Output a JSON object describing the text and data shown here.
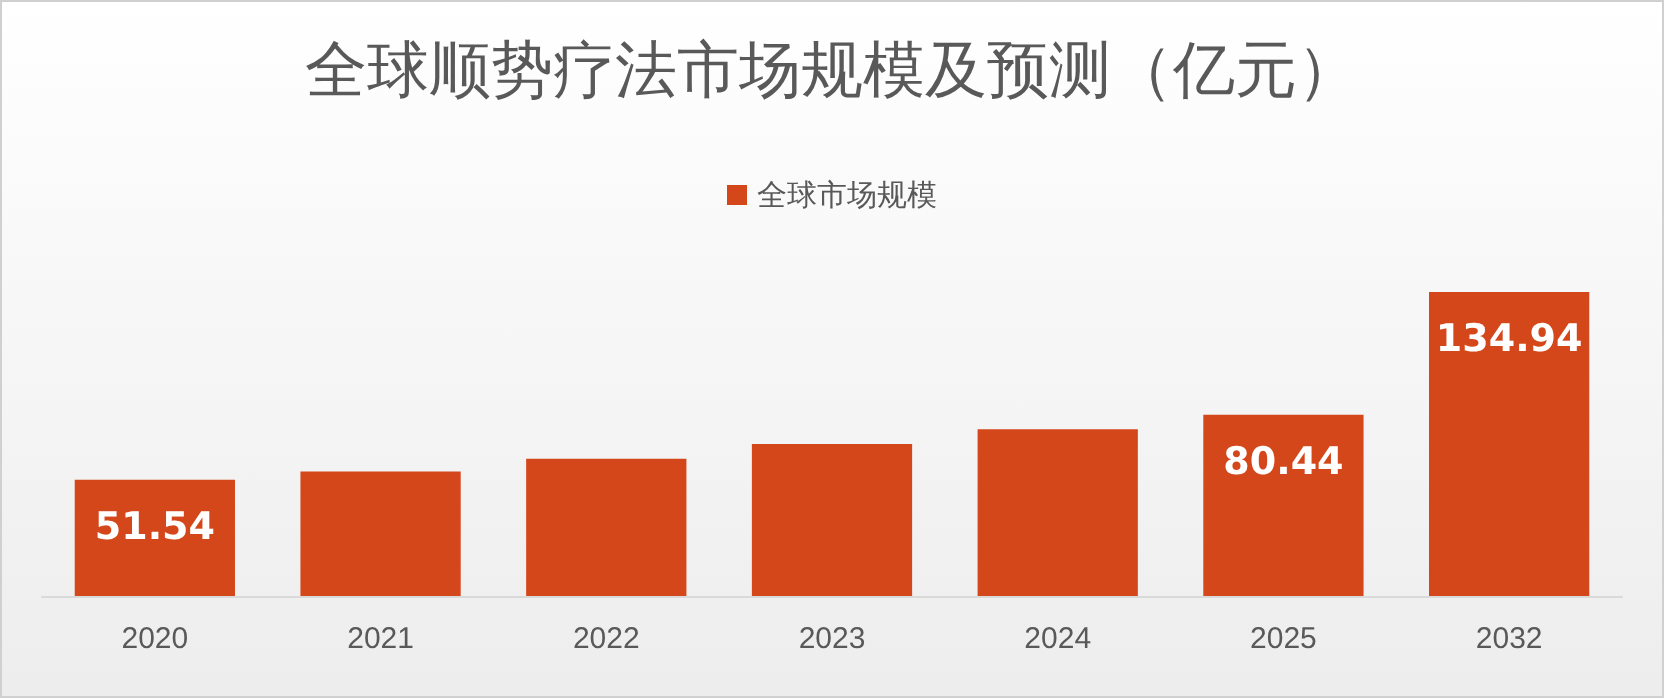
{
  "chart_data": {
    "type": "bar",
    "title": "全球顺势疗法市场规模及预测（亿元）",
    "categories": [
      "2020",
      "2021",
      "2022",
      "2023",
      "2024",
      "2025",
      "2032"
    ],
    "series": [
      {
        "name": "全球市场规模",
        "color": "#d4471a",
        "values": [
          51.54,
          55.3,
          60.9,
          67.5,
          74.0,
          80.44,
          134.94
        ],
        "value_labels": [
          "51.54",
          null,
          null,
          null,
          null,
          "80.44",
          "134.94"
        ]
      }
    ],
    "legend": "top"
  }
}
